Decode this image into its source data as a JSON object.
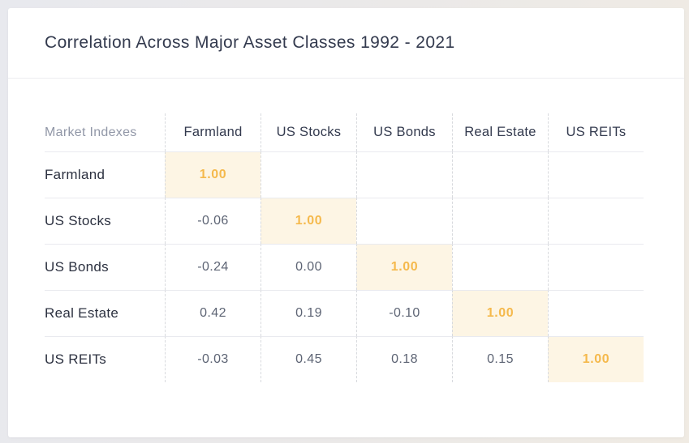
{
  "card": {
    "title": "Correlation Across Major Asset Classes 1992 - 2021"
  },
  "chart_data": {
    "type": "table",
    "title": "Correlation Across Major Asset Classes 1992 - 2021",
    "corner_label": "Market Indexes",
    "columns": [
      "Farmland",
      "US Stocks",
      "US Bonds",
      "Real Estate",
      "US REITs"
    ],
    "rows": [
      {
        "label": "Farmland",
        "values": [
          "1.00",
          "",
          "",
          "",
          ""
        ]
      },
      {
        "label": "US Stocks",
        "values": [
          "-0.06",
          "1.00",
          "",
          "",
          ""
        ]
      },
      {
        "label": "US Bonds",
        "values": [
          "-0.24",
          "0.00",
          "1.00",
          "",
          ""
        ]
      },
      {
        "label": "Real Estate",
        "values": [
          "0.42",
          "0.19",
          "-0.10",
          "1.00",
          ""
        ]
      },
      {
        "label": "US REITs",
        "values": [
          "-0.03",
          "0.45",
          "0.18",
          "0.15",
          "1.00"
        ]
      }
    ],
    "highlight_diagonal": true,
    "legend_position": "none",
    "grid": "row-lines-solid, column-lines-dashed"
  },
  "colors": {
    "highlight_bg": "#fdf5e4",
    "highlight_text": "#f5b94c",
    "value_text": "#5d6474",
    "heading_text": "#333a4e",
    "muted_text": "#9197a7",
    "card_bg": "#ffffff"
  }
}
